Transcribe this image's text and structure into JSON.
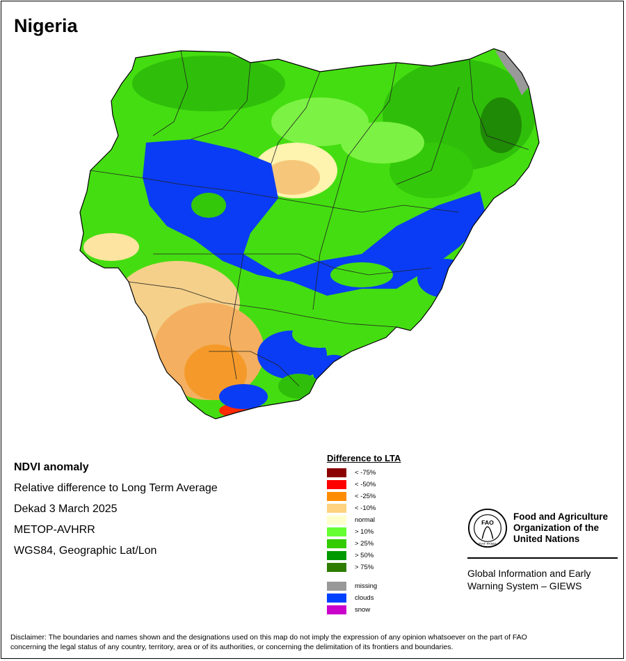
{
  "map": {
    "country": "Nigeria"
  },
  "info": {
    "title": "NDVI anomaly",
    "subtitle": "Relative difference to Long Term Average",
    "period": "Dekad 3 March 2025",
    "sensor": "METOP-AVHRR",
    "projection": "WGS84, Geographic Lat/Lon"
  },
  "legend": {
    "title": "Difference to LTA",
    "items": [
      {
        "label": "< -75%",
        "color": "#8b0000"
      },
      {
        "label": "< -50%",
        "color": "#ff0000"
      },
      {
        "label": "< -25%",
        "color": "#ff8c00"
      },
      {
        "label": "< -10%",
        "color": "#ffd27f"
      },
      {
        "label": "normal",
        "color": "#ffffcc"
      },
      {
        "label": "> 10%",
        "color": "#66ff33"
      },
      {
        "label": "> 25%",
        "color": "#33cc00"
      },
      {
        "label": "> 50%",
        "color": "#009900"
      },
      {
        "label": "> 75%",
        "color": "#2e7d00"
      }
    ],
    "extras": [
      {
        "label": "missing",
        "color": "#999999"
      },
      {
        "label": "clouds",
        "color": "#0040ff"
      },
      {
        "label": "snow",
        "color": "#cc00cc"
      }
    ]
  },
  "fao": {
    "logo_text": "FAO",
    "logo_motto": "FIAT PANIS",
    "name_line1": "Food and Agriculture",
    "name_line2": "Organization of the",
    "name_line3": "United Nations",
    "giews_line1": "Global Information and Early",
    "giews_line2": "Warning System – GIEWS"
  },
  "disclaimer": {
    "line1": "Disclaimer: The boundaries and names shown and the designations used on this map do not imply the expression of any opinion whatsoever on the part of FAO",
    "line2": "concerning the legal status of any country, territory, area or of its authorities, or concerning the delimitation of its frontiers and boundaries."
  }
}
